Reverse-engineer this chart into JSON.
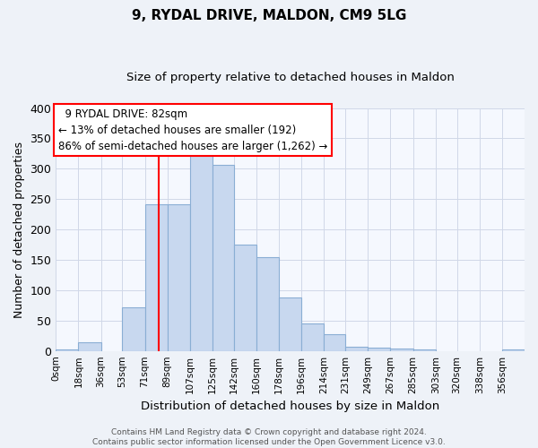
{
  "title": "9, RYDAL DRIVE, MALDON, CM9 5LG",
  "subtitle": "Size of property relative to detached houses in Maldon",
  "xlabel": "Distribution of detached houses by size in Maldon",
  "ylabel": "Number of detached properties",
  "bar_labels": [
    "0sqm",
    "18sqm",
    "36sqm",
    "53sqm",
    "71sqm",
    "89sqm",
    "107sqm",
    "125sqm",
    "142sqm",
    "160sqm",
    "178sqm",
    "196sqm",
    "214sqm",
    "231sqm",
    "249sqm",
    "267sqm",
    "285sqm",
    "303sqm",
    "320sqm",
    "338sqm",
    "356sqm"
  ],
  "bar_heights": [
    2,
    15,
    0,
    72,
    242,
    242,
    335,
    307,
    175,
    155,
    88,
    45,
    28,
    7,
    5,
    4,
    2,
    0,
    0,
    0,
    2
  ],
  "bar_color": "#c8d8ef",
  "bar_edge_color": "#8aaed4",
  "bin_edges": [
    0,
    18,
    36,
    53,
    71,
    89,
    107,
    125,
    142,
    160,
    178,
    196,
    214,
    231,
    249,
    267,
    285,
    303,
    320,
    338,
    356,
    374
  ],
  "red_line_x": 82,
  "ylim": [
    0,
    400
  ],
  "yticks": [
    0,
    50,
    100,
    150,
    200,
    250,
    300,
    350,
    400
  ],
  "annotation_title": "9 RYDAL DRIVE: 82sqm",
  "annotation_line1": "← 13% of detached houses are smaller (192)",
  "annotation_line2": "86% of semi-detached houses are larger (1,262) →",
  "footer1": "Contains HM Land Registry data © Crown copyright and database right 2024.",
  "footer2": "Contains public sector information licensed under the Open Government Licence v3.0.",
  "background_color": "#eef2f8",
  "plot_bg_color": "#f5f8fe",
  "grid_color": "#d0d8e8"
}
